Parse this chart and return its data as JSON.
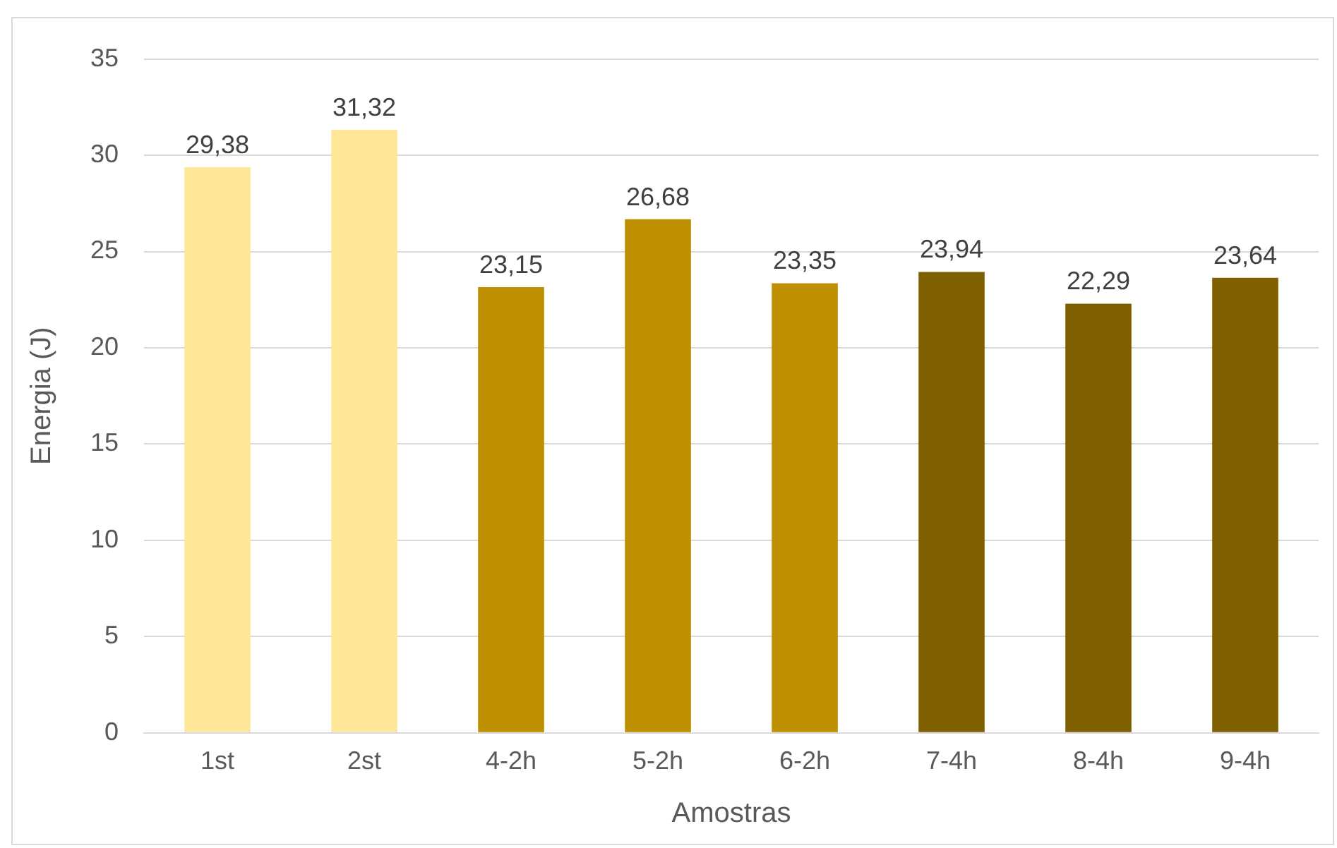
{
  "chart_data": {
    "type": "bar",
    "xlabel": "Amostras",
    "ylabel": "Energia (J)",
    "categories": [
      "1st",
      "2st",
      "4-2h",
      "5-2h",
      "6-2h",
      "7-4h",
      "8-4h",
      "9-4h"
    ],
    "values": [
      29.38,
      31.32,
      23.15,
      26.68,
      23.35,
      23.94,
      22.29,
      23.64
    ],
    "colors": [
      "#ffe699",
      "#ffe699",
      "#bf9000",
      "#bf9000",
      "#bf9000",
      "#7f6000",
      "#7f6000",
      "#7f6000"
    ],
    "value_labels": [
      "29,38",
      "31,32",
      "23,15",
      "26,68",
      "23,35",
      "23,94",
      "22,29",
      "23,64"
    ],
    "ylim": [
      0,
      35
    ],
    "yticks": [
      0,
      5,
      10,
      15,
      20,
      25,
      30,
      35
    ],
    "grid": "y",
    "legend": false
  }
}
